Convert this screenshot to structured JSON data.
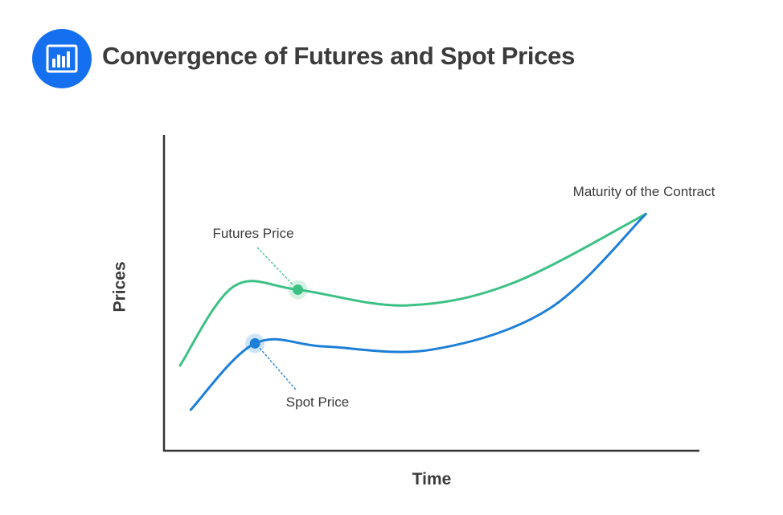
{
  "header": {
    "title": "Convergence of Futures and Spot Prices",
    "icon": "bar-chart-icon",
    "icon_color": "#1570ef"
  },
  "colors": {
    "futures": "#3cc184",
    "spot": "#1d7fd8",
    "axis": "#333333",
    "text": "#3b3b3b"
  },
  "chart_data": {
    "type": "line",
    "title": "Convergence of Futures and Spot Prices",
    "xlabel": "Time",
    "ylabel": "Prices",
    "grid": false,
    "legend": "none",
    "series": [
      {
        "name": "Futures Price",
        "color": "#3cc184",
        "points": [
          [
            0.03,
            0.27
          ],
          [
            0.13,
            0.52
          ],
          [
            0.25,
            0.51
          ],
          [
            0.45,
            0.46
          ],
          [
            0.65,
            0.53
          ],
          [
            0.9,
            0.75
          ]
        ]
      },
      {
        "name": "Spot Price",
        "color": "#1d7fd8",
        "points": [
          [
            0.05,
            0.13
          ],
          [
            0.17,
            0.34
          ],
          [
            0.3,
            0.33
          ],
          [
            0.5,
            0.32
          ],
          [
            0.72,
            0.45
          ],
          [
            0.9,
            0.75
          ]
        ]
      }
    ],
    "markers": [
      {
        "series": "Futures Price",
        "label": "Futures Price",
        "point": [
          0.25,
          0.51
        ]
      },
      {
        "series": "Spot Price",
        "label": "Spot Price",
        "point": [
          0.17,
          0.34
        ]
      }
    ],
    "annotations": [
      {
        "text": "Maturity of the Contract",
        "point": [
          0.9,
          0.75
        ]
      }
    ]
  }
}
